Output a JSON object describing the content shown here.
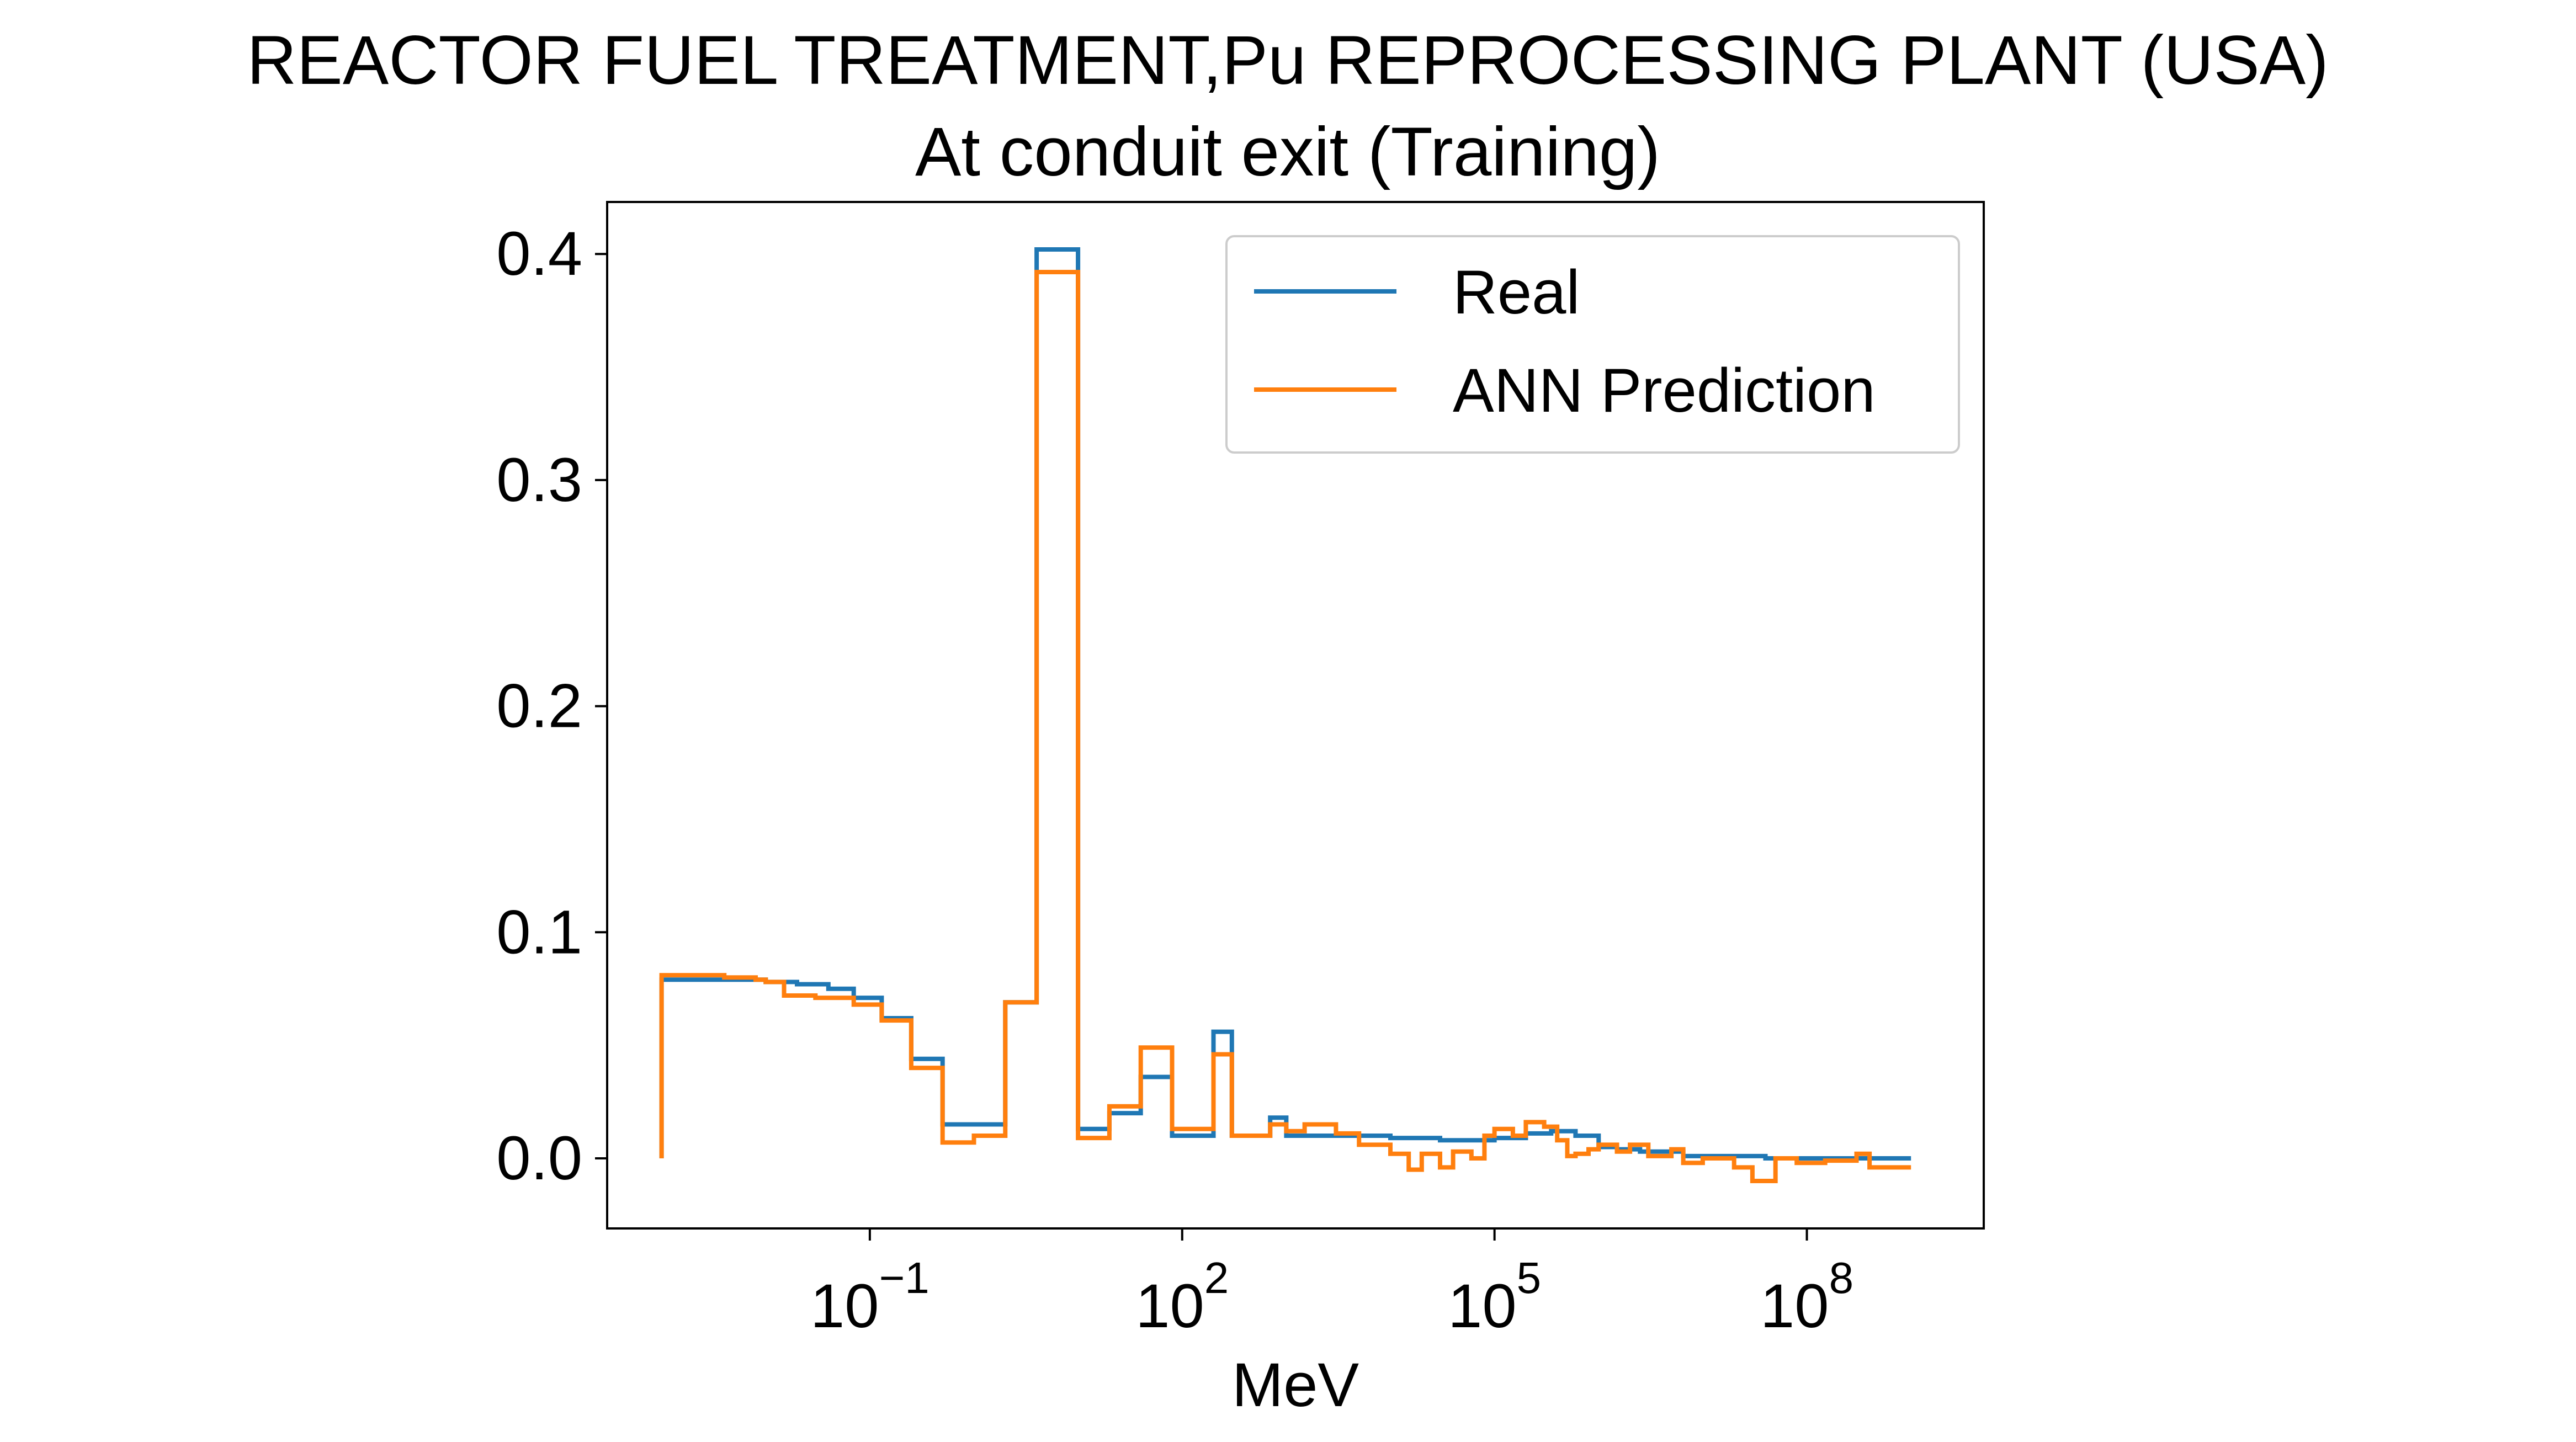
{
  "chart_data": {
    "type": "line",
    "title": "REACTOR FUEL TREATMENT,Pu REPROCESSING PLANT (USA)",
    "subtitle": "At conduit exit (Training)",
    "xlabel": "MeV",
    "ylabel": "",
    "x_scale": "log",
    "xlim": [
      0.0003,
      5000000000.0
    ],
    "ylim": [
      -0.031,
      0.423
    ],
    "x_ticks": [
      {
        "base": "10",
        "exp": "−1",
        "value": 0.1
      },
      {
        "base": "10",
        "exp": "2",
        "value": 100
      },
      {
        "base": "10",
        "exp": "5",
        "value": 100000
      },
      {
        "base": "10",
        "exp": "8",
        "value": 100000000
      }
    ],
    "y_ticks": [
      {
        "label": "0.0",
        "value": 0.0
      },
      {
        "label": "0.1",
        "value": 0.1
      },
      {
        "label": "0.2",
        "value": 0.2
      },
      {
        "label": "0.3",
        "value": 0.3
      },
      {
        "label": "0.4",
        "value": 0.4
      }
    ],
    "grid": false,
    "legend_position": "top-right",
    "step": "post",
    "series": [
      {
        "name": "Real",
        "color": "#1f77b4",
        "x": [
          0.001,
          0.001,
          0.004,
          0.01,
          0.02,
          0.04,
          0.07,
          0.13,
          0.25,
          0.5,
          1.0,
          2.0,
          4.0,
          10,
          20,
          40,
          80,
          120,
          200,
          300,
          700,
          1000,
          3000,
          10000,
          30000,
          100000,
          200000,
          350000,
          600000,
          1000000,
          1500000,
          2500000,
          4000000,
          6500000,
          10000000,
          20000000,
          40000000,
          70000000,
          200000000,
          400000000,
          1000000000
        ],
        "y": [
          0.0,
          0.079,
          0.079,
          0.078,
          0.077,
          0.075,
          0.071,
          0.062,
          0.044,
          0.015,
          0.015,
          0.069,
          0.402,
          0.013,
          0.02,
          0.036,
          0.01,
          0.01,
          0.056,
          0.01,
          0.018,
          0.01,
          0.01,
          0.009,
          0.008,
          0.009,
          0.011,
          0.012,
          0.01,
          0.005,
          0.004,
          0.003,
          0.003,
          0.001,
          0.001,
          0.001,
          0.0,
          0.0,
          0.0,
          0.0,
          0.0
        ]
      },
      {
        "name": "ANN Prediction",
        "color": "#ff7f0e",
        "x": [
          0.001,
          0.001,
          0.002,
          0.004,
          0.008,
          0.01,
          0.015,
          0.02,
          0.03,
          0.04,
          0.07,
          0.13,
          0.25,
          0.5,
          1.0,
          2.0,
          4.0,
          10,
          20,
          40,
          80,
          150,
          200,
          300,
          700,
          1000,
          1500,
          3000,
          5000,
          10000,
          15000,
          20000,
          30000,
          40000,
          60000,
          80000,
          100000,
          150000,
          200000,
          300000,
          400000,
          500000,
          600000,
          800000,
          1000000,
          1500000,
          2000000,
          3000000,
          5000000,
          6500000,
          10000000,
          20000000,
          30000000,
          50000000,
          80000000,
          150000000,
          300000000,
          400000000,
          1000000000
        ],
        "y": [
          0.0,
          0.081,
          0.081,
          0.08,
          0.079,
          0.078,
          0.072,
          0.072,
          0.071,
          0.071,
          0.068,
          0.061,
          0.04,
          0.007,
          0.01,
          0.069,
          0.392,
          0.009,
          0.023,
          0.049,
          0.013,
          0.013,
          0.046,
          0.01,
          0.015,
          0.012,
          0.015,
          0.011,
          0.006,
          0.002,
          -0.005,
          0.002,
          -0.004,
          0.003,
          0.0,
          0.01,
          0.013,
          0.01,
          0.016,
          0.014,
          0.008,
          0.001,
          0.002,
          0.004,
          0.006,
          0.003,
          0.006,
          0.001,
          0.004,
          -0.002,
          0.0,
          -0.004,
          -0.01,
          0.0,
          -0.002,
          -0.001,
          0.002,
          -0.004,
          -0.004
        ]
      }
    ]
  }
}
